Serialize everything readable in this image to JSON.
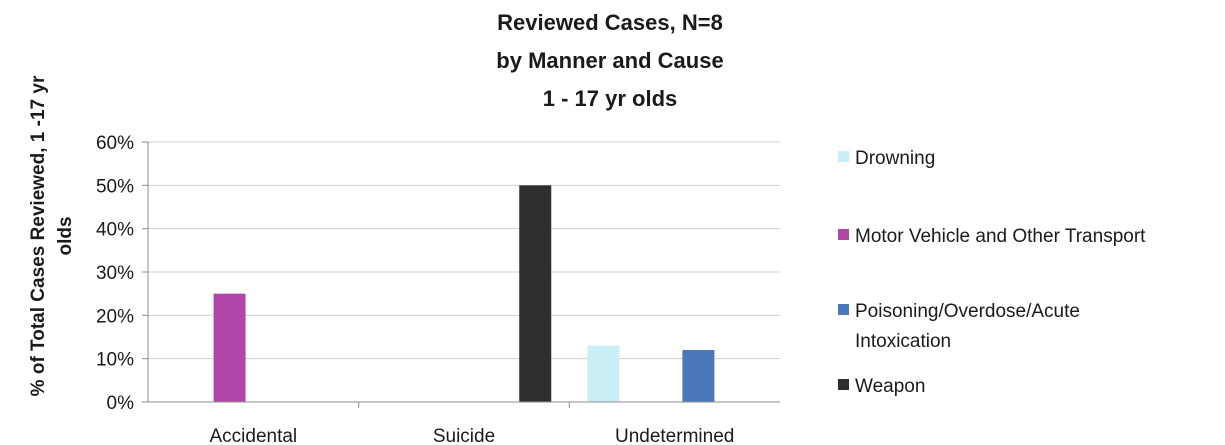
{
  "chart_data": {
    "type": "bar",
    "title_lines": [
      "Reviewed Cases, N=8",
      "by Manner and Cause",
      "1 - 17 yr olds"
    ],
    "ylabel_lines": [
      "% of Total Cases Reviewed, 1 -17 yr",
      "olds"
    ],
    "xlabel": "",
    "categories": [
      "Accidental",
      "Suicide",
      "Undetermined"
    ],
    "y_ticks": [
      "0%",
      "10%",
      "20%",
      "30%",
      "40%",
      "50%",
      "60%"
    ],
    "ylim": [
      0,
      60
    ],
    "grid": true,
    "legend_position": "right",
    "series": [
      {
        "name": "Drowning",
        "color": "#c9eef5",
        "values": [
          0,
          0,
          13
        ]
      },
      {
        "name": "Motor Vehicle and Other Transport",
        "color": "#b246a8",
        "values": [
          25,
          0,
          0
        ]
      },
      {
        "name": "Poisoning/Overdose/Acute Intoxication",
        "color": "#4a78b8",
        "values": [
          0,
          0,
          12
        ]
      },
      {
        "name": "Weapon",
        "color": "#2f2f2f",
        "values": [
          0,
          50,
          0
        ]
      }
    ],
    "legend_lines": [
      [
        "Drowning"
      ],
      [
        "Motor Vehicle and Other Transport"
      ],
      [
        "Poisoning/Overdose/Acute",
        "Intoxication"
      ],
      [
        "Weapon"
      ]
    ]
  }
}
